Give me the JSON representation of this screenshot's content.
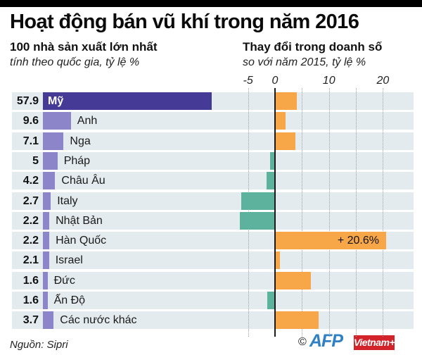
{
  "header": {
    "title": "Hoạt động bán vũ khí trong năm 2016",
    "left_subtitle_bold": "100 nhà sản xuất lớn nhất",
    "left_subtitle_italic": "tính theo quốc gia, tỷ lệ %",
    "right_subtitle_bold": "Thay đổi trong doanh số",
    "right_subtitle_italic": "so với năm 2015, tỷ lệ %"
  },
  "chart_data": {
    "type": "bar",
    "orientation": "horizontal",
    "categories": [
      "Mỹ",
      "Anh",
      "Nga",
      "Pháp",
      "Châu Âu",
      "Italy",
      "Nhật Bản",
      "Hàn Quốc",
      "Israel",
      "Đức",
      "Ấn Độ",
      "Các nước khác"
    ],
    "series": [
      {
        "name": "Tỷ lệ trong 100 nhà sản xuất lớn nhất (%)",
        "values": [
          57.9,
          9.6,
          7.1,
          5,
          4.2,
          2.7,
          2.2,
          2.2,
          2.1,
          1.6,
          1.6,
          3.7
        ]
      },
      {
        "name": "Thay đổi doanh số so với 2015 (%)",
        "values": [
          4.0,
          2.0,
          3.8,
          -0.9,
          -1.6,
          -6.3,
          -6.5,
          20.6,
          0.9,
          6.6,
          -1.4,
          8.1
        ]
      }
    ],
    "share_labels": [
      "57.9",
      "9.6",
      "7.1",
      "5",
      "4.2",
      "2.7",
      "2.2",
      "2.2",
      "2.1",
      "1.6",
      "1.6",
      "3.7"
    ],
    "highlight_index": 7,
    "highlight_label": "+ 20.6%",
    "axis": {
      "ticks": [
        "-5",
        "0",
        "10",
        "20"
      ],
      "tick_values": [
        -5,
        0,
        10,
        20
      ],
      "gridline_values": [
        -5,
        5,
        10,
        15,
        20
      ],
      "xlim": [
        -7,
        23
      ],
      "grid": "dotted"
    },
    "colors": {
      "us_bar": "#453a96",
      "share_bar": "#8d85c9",
      "positive": "#f8a748",
      "negative": "#5cb29c",
      "row_background": "#e3ebee",
      "axis_line": "#1a1a1a"
    }
  },
  "footer": {
    "source": "Nguồn: Sipri",
    "copyright": "©",
    "afp_logo": "AFP",
    "vietnamplus_logo": "Vietnam+"
  }
}
